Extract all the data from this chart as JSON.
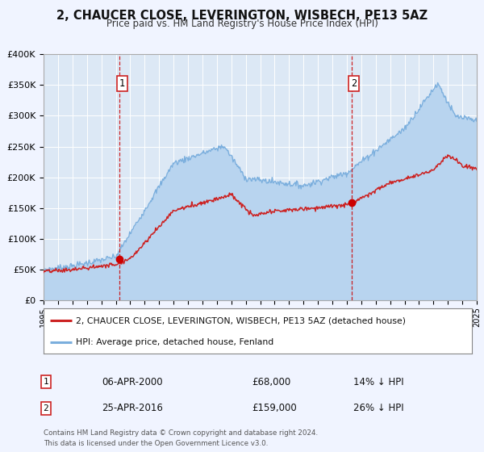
{
  "title": "2, CHAUCER CLOSE, LEVERINGTON, WISBECH, PE13 5AZ",
  "subtitle": "Price paid vs. HM Land Registry's House Price Index (HPI)",
  "background_color": "#f0f4ff",
  "plot_bg_color": "#dce8f5",
  "grid_color": "#ffffff",
  "hpi_color": "#7aaedd",
  "hpi_fill_color": "#b8d4ef",
  "price_color": "#cc2222",
  "marker_color": "#cc0000",
  "sale1_year": 2000.27,
  "sale1_price": 68000,
  "sale1_label": "06-APR-2000",
  "sale1_pct": "14% ↓ HPI",
  "sale2_year": 2016.32,
  "sale2_price": 159000,
  "sale2_label": "25-APR-2016",
  "sale2_pct": "26% ↓ HPI",
  "xmin": 1995,
  "xmax": 2025,
  "ymin": 0,
  "ymax": 400000,
  "yticks": [
    0,
    50000,
    100000,
    150000,
    200000,
    250000,
    300000,
    350000,
    400000
  ],
  "legend_label_price": "2, CHAUCER CLOSE, LEVERINGTON, WISBECH, PE13 5AZ (detached house)",
  "legend_label_hpi": "HPI: Average price, detached house, Fenland",
  "footer": "Contains HM Land Registry data © Crown copyright and database right 2024.\nThis data is licensed under the Open Government Licence v3.0."
}
